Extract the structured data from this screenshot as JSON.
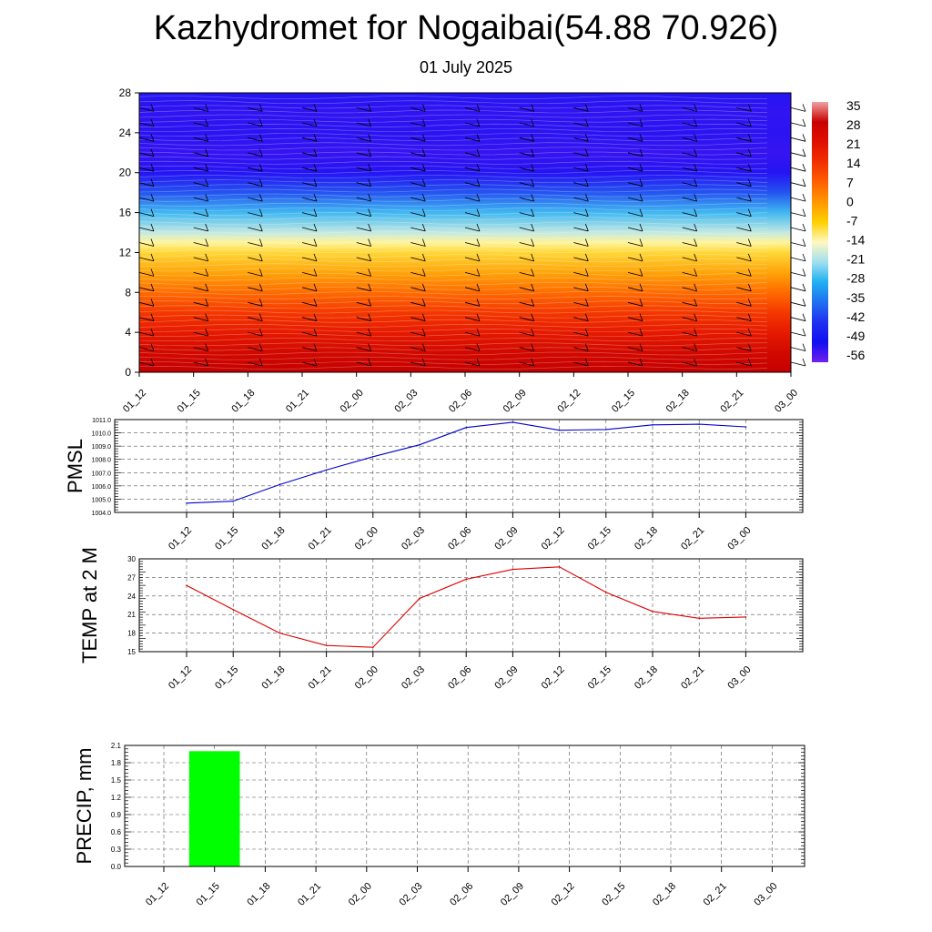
{
  "title": "Kazhydromet for Nogaibai(54.88 70.926)",
  "subtitle": "01 July 2025",
  "colors": {
    "pmsl_line": "#0000cc",
    "temp_line": "#dd0000",
    "precip_bar": "#00ff00"
  },
  "chart_data": [
    {
      "type": "heatmap",
      "title": "",
      "xlabel": "",
      "ylabel": "",
      "x": [
        "01_12",
        "01_15",
        "01_18",
        "01_21",
        "02_00",
        "02_03",
        "02_06",
        "02_09",
        "02_12",
        "02_15",
        "02_18",
        "02_21",
        "03_00"
      ],
      "y_ticks": [
        0,
        4,
        8,
        12,
        16,
        20,
        24,
        28
      ],
      "ylim": [
        0,
        28
      ],
      "colorbar": {
        "labels": [
          "35",
          "28",
          "21",
          "14",
          "7",
          "0",
          "-7",
          "-14",
          "-21",
          "-28",
          "-35",
          "-42",
          "-49",
          "-56"
        ],
        "colors": [
          "#f0a0a0",
          "#c80000",
          "#e01000",
          "#f03000",
          "#ff6000",
          "#ff9800",
          "#ffd000",
          "#fff8c0",
          "#a0e0f0",
          "#20b0f0",
          "#2070f0",
          "#2030f0",
          "#1010f0",
          "#7020f0"
        ]
      },
      "vertical_profile": [
        {
          "level": 0,
          "value": 29
        },
        {
          "level": 2,
          "value": 26
        },
        {
          "level": 4,
          "value": 22
        },
        {
          "level": 6,
          "value": 18
        },
        {
          "level": 8,
          "value": 12
        },
        {
          "level": 10,
          "value": 5
        },
        {
          "level": 12,
          "value": -3
        },
        {
          "level": 13,
          "value": -11
        },
        {
          "level": 14,
          "value": -18
        },
        {
          "level": 16,
          "value": -26
        },
        {
          "level": 18,
          "value": -38
        },
        {
          "level": 20,
          "value": -52
        },
        {
          "level": 22,
          "value": -55
        },
        {
          "level": 24,
          "value": -53
        },
        {
          "level": 26,
          "value": -54
        },
        {
          "level": 28,
          "value": -52
        }
      ],
      "grid": false
    },
    {
      "type": "line",
      "ylabel": "PMSL",
      "x": [
        "01_12",
        "01_15",
        "01_18",
        "01_21",
        "02_00",
        "02_03",
        "02_06",
        "02_09",
        "02_12",
        "02_15",
        "02_18",
        "02_21",
        "03_00"
      ],
      "y_ticks": [
        "1004.0",
        "1005.0",
        "1006.0",
        "1007.0",
        "1008.0",
        "1009.0",
        "1010.0",
        "1011.0"
      ],
      "ylim": [
        1004.0,
        1011.0
      ],
      "series": [
        {
          "values": [
            1004.7,
            1004.85,
            1006.1,
            1007.2,
            1008.2,
            1009.1,
            1010.4,
            1010.8,
            1010.2,
            1010.25,
            1010.6,
            1010.65,
            1010.45
          ]
        }
      ],
      "grid": true
    },
    {
      "type": "line",
      "ylabel": "TEMP at 2 M",
      "x": [
        "01_12",
        "01_15",
        "01_18",
        "01_21",
        "02_00",
        "02_03",
        "02_06",
        "02_09",
        "02_12",
        "02_15",
        "02_18",
        "02_21",
        "03_00"
      ],
      "y_ticks": [
        "15",
        "18",
        "21",
        "24",
        "27",
        "30"
      ],
      "ylim": [
        15,
        30
      ],
      "series": [
        {
          "values": [
            25.7,
            21.8,
            18.0,
            16.0,
            15.7,
            23.6,
            26.7,
            28.3,
            28.7,
            24.6,
            21.5,
            20.4,
            20.6
          ]
        }
      ],
      "grid": true
    },
    {
      "type": "bar",
      "ylabel": "PRECIP, mm",
      "categories": [
        "01_12",
        "01_15",
        "01_18",
        "01_21",
        "02_00",
        "02_03",
        "02_06",
        "02_09",
        "02_12",
        "02_15",
        "02_18",
        "02_21",
        "03_00"
      ],
      "bars": [
        {
          "from": "01_12",
          "to": "01_15",
          "value": 2.0
        }
      ],
      "y_ticks": [
        "0.0",
        "0.3",
        "0.6",
        "0.9",
        "1.2",
        "1.5",
        "1.8",
        "2.1"
      ],
      "ylim": [
        0.0,
        2.1
      ],
      "grid": true
    }
  ]
}
